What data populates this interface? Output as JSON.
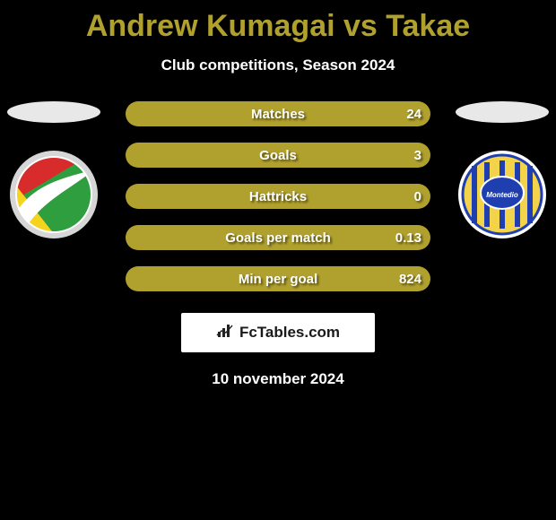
{
  "header": {
    "title": "Andrew Kumagai vs Takae",
    "title_color": "#b0a02d",
    "subtitle": "Club competitions, Season 2024"
  },
  "players": {
    "left": {
      "name": "Andrew Kumagai",
      "crest_colors": {
        "top": "#d82c2c",
        "left": "#f5d420",
        "right": "#2e9e3e",
        "swoosh": "#ffffff",
        "border": "#d6d6d6"
      }
    },
    "right": {
      "name": "Takae",
      "crest_colors": {
        "base": "#f2d34a",
        "stripes": "#1f3fb0",
        "border": "#ffffff",
        "inner": "#1f3fb0"
      }
    }
  },
  "stats": {
    "row_bg": "#6f651f",
    "fill_color": "#b0a02d",
    "rows": [
      {
        "label": "Matches",
        "left": "",
        "right": "24",
        "fill_pct": 100
      },
      {
        "label": "Goals",
        "left": "",
        "right": "3",
        "fill_pct": 100
      },
      {
        "label": "Hattricks",
        "left": "",
        "right": "0",
        "fill_pct": 100
      },
      {
        "label": "Goals per match",
        "left": "",
        "right": "0.13",
        "fill_pct": 100
      },
      {
        "label": "Min per goal",
        "left": "",
        "right": "824",
        "fill_pct": 100
      }
    ]
  },
  "brand": {
    "text": "FcTables.com",
    "icon_name": "bar-chart-icon"
  },
  "footer": {
    "date": "10 november 2024"
  }
}
